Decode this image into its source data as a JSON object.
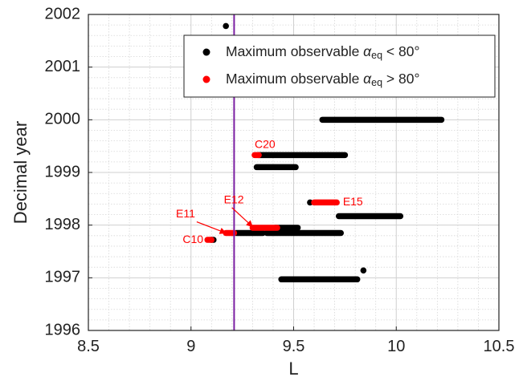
{
  "chart_data": {
    "type": "scatter",
    "xlabel": "L",
    "ylabel": "Decimal year",
    "xlim": [
      8.5,
      10.5
    ],
    "ylim": [
      1996,
      2002
    ],
    "xticks": [
      8.5,
      9,
      9.5,
      10,
      10.5
    ],
    "xtick_labels": [
      "8.5",
      "9",
      "9.5",
      "10",
      "10.5"
    ],
    "yticks": [
      1996,
      1997,
      1998,
      1999,
      2000,
      2001,
      2002
    ],
    "ytick_labels": [
      "1996",
      "1997",
      "1998",
      "1999",
      "2000",
      "2001",
      "2002"
    ],
    "grid": true,
    "minor_grid": true,
    "vertical_line": {
      "x": 9.21,
      "color": "#7b1fa2"
    },
    "legend": {
      "placement": "top-right",
      "entries": [
        {
          "marker_color": "#000000",
          "prefix": "Maximum observable ",
          "symbol": "α",
          "subscript": "eq",
          "suffix": " < 80°"
        },
        {
          "marker_color": "#ff0000",
          "prefix": "Maximum observable ",
          "symbol": "α",
          "subscript": "eq",
          "suffix": " > 80°"
        }
      ]
    },
    "series": [
      {
        "color": "#000000",
        "points": [
          {
            "x": 9.17,
            "y": 2001.78
          },
          {
            "x": 9.84,
            "y": 1997.14
          },
          {
            "x": 9.58,
            "y": 1998.43
          }
        ],
        "segments": [
          {
            "x1": 9.64,
            "x2": 10.22,
            "y": 2000.0
          },
          {
            "x1": 9.33,
            "x2": 9.75,
            "y": 1999.33
          },
          {
            "x1": 9.32,
            "x2": 9.51,
            "y": 1999.1
          },
          {
            "x1": 9.72,
            "x2": 10.02,
            "y": 1998.17
          },
          {
            "x1": 9.41,
            "x2": 9.52,
            "y": 1997.95
          },
          {
            "x1": 9.22,
            "x2": 9.35,
            "y": 1997.85
          },
          {
            "x1": 9.37,
            "x2": 9.73,
            "y": 1997.85
          },
          {
            "x1": 9.1,
            "x2": 9.11,
            "y": 1997.72
          },
          {
            "x1": 9.44,
            "x2": 9.81,
            "y": 1996.97
          }
        ]
      },
      {
        "color": "#ff0000",
        "points": [],
        "segments": [
          {
            "x1": 9.31,
            "x2": 9.33,
            "y": 1999.33
          },
          {
            "x1": 9.6,
            "x2": 9.71,
            "y": 1998.43
          },
          {
            "x1": 9.3,
            "x2": 9.42,
            "y": 1997.95
          },
          {
            "x1": 9.17,
            "x2": 9.21,
            "y": 1997.85
          },
          {
            "x1": 9.08,
            "x2": 9.1,
            "y": 1997.72
          }
        ]
      }
    ],
    "annotations": [
      {
        "label": "C20",
        "color": "#ff0000",
        "x": 9.31,
        "y": 1999.52,
        "anchor": "start",
        "arrow": false
      },
      {
        "label": "E15",
        "color": "#ff0000",
        "x": 9.74,
        "y": 1998.43,
        "anchor": "start",
        "arrow": false
      },
      {
        "label": "E12",
        "color": "#ff0000",
        "x": 9.16,
        "y": 1998.47,
        "anchor": "start",
        "arrow": true,
        "arrow_to": {
          "x": 9.3,
          "y": 1997.97
        }
      },
      {
        "label": "E11",
        "color": "#ff0000",
        "x": 9.02,
        "y": 1998.2,
        "anchor": "end",
        "arrow": true,
        "arrow_to": {
          "x": 9.17,
          "y": 1997.85
        }
      },
      {
        "label": "C10",
        "color": "#ff0000",
        "x": 9.06,
        "y": 1997.72,
        "anchor": "end",
        "arrow": false
      }
    ]
  }
}
